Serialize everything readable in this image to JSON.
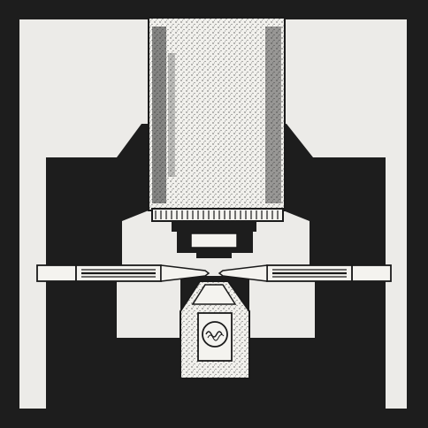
{
  "figure": {
    "kind": "line-drawing",
    "colors": {
      "frame": "#1d1d1d",
      "background": "#ecebe8",
      "ink": "#1a1a1a",
      "paper": "#f4f3ef",
      "stipple": "#bdbcb8"
    },
    "components": [
      "dark-frame",
      "upper-column",
      "column-collar",
      "lens-block",
      "left-holder-rod",
      "right-holder-rod",
      "lower-cup",
      "specimen-disc"
    ]
  }
}
